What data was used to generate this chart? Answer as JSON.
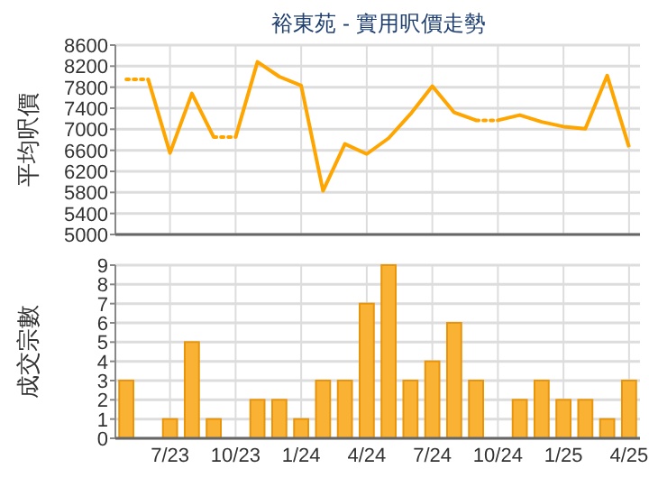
{
  "chart_data": [
    {
      "type": "line",
      "title": "裕東苑 - 實用呎價走勢",
      "ylabel": "平均呎價",
      "categories": [
        null,
        null,
        null,
        null,
        null,
        null,
        null,
        null,
        null,
        null,
        null,
        null,
        null,
        null,
        null,
        null,
        null,
        null,
        null,
        null,
        null,
        null,
        null,
        null
      ],
      "series": [
        {
          "color": "#ffa500",
          "line_style": "solid",
          "values": [
            null,
            7950,
            6550,
            7680,
            6850,
            null,
            null,
            null,
            null,
            null,
            null,
            null,
            null,
            null,
            null,
            null,
            null,
            null,
            null,
            null,
            null,
            null,
            null,
            null
          ]
        },
        {
          "color": "#ffa500",
          "line_style": "solid",
          "values": [
            null,
            null,
            null,
            null,
            null,
            6850,
            8280,
            8000,
            7830,
            5830,
            6720,
            6530,
            6830,
            7290,
            7820,
            7320,
            7170,
            null,
            null,
            null,
            null,
            null,
            null,
            null
          ]
        },
        {
          "color": "#ffa500",
          "line_style": "solid",
          "values": [
            null,
            null,
            null,
            null,
            null,
            null,
            null,
            null,
            null,
            null,
            null,
            null,
            null,
            null,
            null,
            null,
            null,
            7170,
            7270,
            7140,
            7050,
            7010,
            8020,
            6660
          ]
        },
        {
          "color": "#ffa500",
          "line_style": "dotted",
          "values": [
            7950,
            7950,
            null,
            null,
            6850,
            6850,
            null,
            null,
            null,
            null,
            null,
            null,
            null,
            null,
            null,
            null,
            7170,
            7170,
            null,
            null,
            null,
            null,
            null,
            null
          ]
        }
      ],
      "ylim": [
        5000,
        8600
      ],
      "yticks": [
        5000,
        5400,
        5800,
        6200,
        6600,
        7000,
        7400,
        7800,
        8200,
        8600
      ],
      "grid": true,
      "tick_labels": "y"
    },
    {
      "type": "bar",
      "ylabel": "成交宗數",
      "categories": [
        null,
        null,
        "7/23",
        null,
        null,
        "10/23",
        null,
        null,
        "1/24",
        null,
        null,
        "4/24",
        null,
        null,
        "7/24",
        null,
        null,
        "10/24",
        null,
        null,
        "1/25",
        null,
        null,
        "4/25"
      ],
      "values": [
        3,
        0,
        1,
        5,
        1,
        0,
        2,
        2,
        1,
        3,
        3,
        7,
        9,
        3,
        4,
        6,
        3,
        0,
        2,
        3,
        2,
        2,
        1,
        3
      ],
      "color": "#f9b233",
      "ylim": [
        0,
        9
      ],
      "yticks": [
        0,
        1,
        2,
        3,
        4,
        5,
        6,
        7,
        8,
        9
      ],
      "grid": true
    }
  ]
}
